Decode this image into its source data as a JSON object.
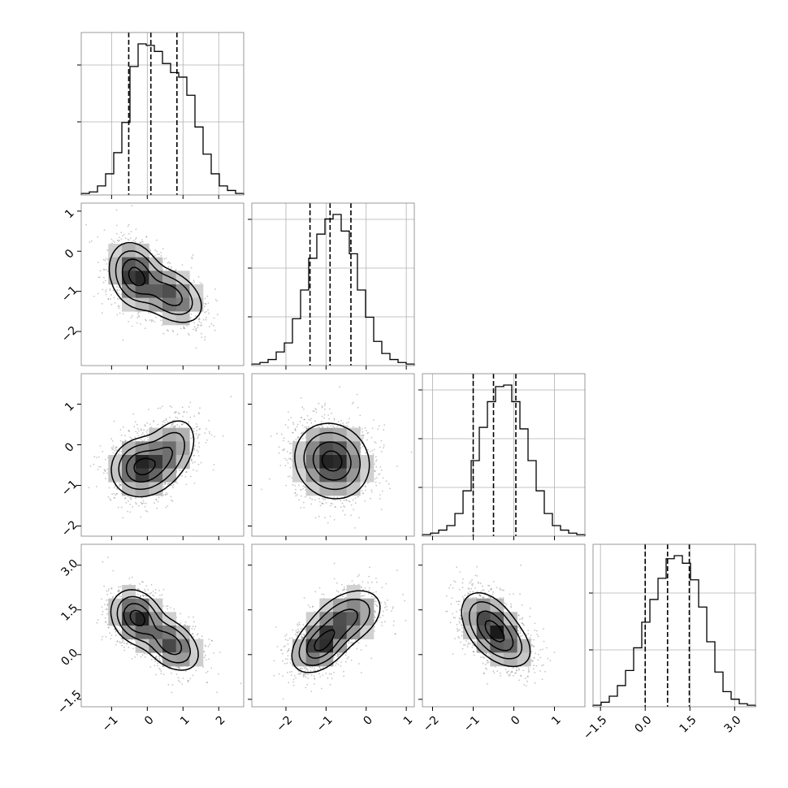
{
  "chart_data": {
    "type": "corner",
    "title": "",
    "grid": true,
    "parameters": [
      {
        "range": [
          -1.85,
          2.7
        ],
        "ticks": [
          -1,
          0,
          1,
          2
        ],
        "tick_labels": [
          "−1",
          "0",
          "1",
          "2"
        ],
        "hist_ticks_y": [
          0.45,
          0.8
        ],
        "quantiles": [
          -0.52,
          0.1,
          0.83
        ]
      },
      {
        "range": [
          -2.85,
          1.2
        ],
        "ticks": [
          -2,
          -1,
          0,
          1
        ],
        "tick_labels": [
          "−2",
          "−1",
          "0",
          "1"
        ],
        "hist_ticks_y": [
          0.3,
          0.6,
          0.9
        ],
        "quantiles": [
          -1.4,
          -0.9,
          -0.38
        ]
      },
      {
        "range": [
          -2.25,
          1.75
        ],
        "ticks": [
          -2,
          -1,
          0,
          1
        ],
        "tick_labels": [
          "−2",
          "−1",
          "0",
          "1"
        ],
        "hist_ticks_y": [
          0.3,
          0.6,
          0.9
        ],
        "quantiles": [
          -1.0,
          -0.5,
          0.05
        ]
      },
      {
        "range": [
          -1.75,
          3.7
        ],
        "ticks": [
          -1.5,
          0.0,
          1.5,
          3.0
        ],
        "tick_labels": [
          "−1.5",
          "0.0",
          "1.5",
          "3.0"
        ],
        "hist_ticks_y": [
          0.35,
          0.7
        ],
        "quantiles": [
          0.0,
          0.75,
          1.48
        ]
      }
    ],
    "histograms": [
      {
        "param": 0,
        "bin_start": -1.85,
        "bin_width": 0.2275,
        "counts": [
          1,
          2,
          6,
          14,
          28,
          48,
          85,
          100,
          99,
          95,
          87,
          81,
          78,
          66,
          45,
          27,
          14,
          6,
          3,
          1
        ]
      },
      {
        "param": 1,
        "bin_start": -2.85,
        "bin_width": 0.2025,
        "counts": [
          1,
          2,
          4,
          9,
          15,
          31,
          50,
          71,
          87,
          97,
          100,
          89,
          74,
          50,
          32,
          16,
          8,
          4,
          2,
          1
        ]
      },
      {
        "param": 2,
        "bin_start": -2.25,
        "bin_width": 0.2,
        "counts": [
          1,
          2,
          4,
          7,
          15,
          30,
          50,
          72,
          89,
          99,
          100,
          89,
          71,
          50,
          30,
          15,
          7,
          4,
          2,
          1
        ]
      },
      {
        "param": 3,
        "bin_start": -1.75,
        "bin_width": 0.2725,
        "counts": [
          1,
          3,
          7,
          14,
          24,
          39,
          56,
          71,
          85,
          98,
          100,
          95,
          84,
          66,
          43,
          23,
          10,
          5,
          2,
          1
        ]
      }
    ],
    "joint_densities": [
      {
        "x_param": 0,
        "y_param": 1,
        "peaks": [
          {
            "x": -0.35,
            "y": -0.6,
            "w": 1.0,
            "sx": 0.35,
            "sy": 0.4,
            "rho": -0.2
          },
          {
            "x": 0.65,
            "y": -1.1,
            "w": 0.8,
            "sx": 0.45,
            "sy": 0.35,
            "rho": -0.4
          }
        ]
      },
      {
        "x_param": 0,
        "y_param": 2,
        "peaks": [
          {
            "x": -0.2,
            "y": -0.55,
            "w": 1.0,
            "sx": 0.4,
            "sy": 0.35,
            "rho": 0.1
          },
          {
            "x": 0.6,
            "y": -0.2,
            "w": 0.6,
            "sx": 0.4,
            "sy": 0.45,
            "rho": 0.4
          }
        ]
      },
      {
        "x_param": 1,
        "y_param": 2,
        "peaks": [
          {
            "x": -0.85,
            "y": -0.4,
            "w": 1.0,
            "sx": 0.45,
            "sy": 0.45,
            "rho": -0.1
          }
        ]
      },
      {
        "x_param": 0,
        "y_param": 3,
        "peaks": [
          {
            "x": -0.3,
            "y": 1.25,
            "w": 1.0,
            "sx": 0.35,
            "sy": 0.45,
            "rho": -0.2
          },
          {
            "x": 0.65,
            "y": 0.35,
            "w": 0.8,
            "sx": 0.4,
            "sy": 0.45,
            "rho": -0.4
          }
        ]
      },
      {
        "x_param": 1,
        "y_param": 3,
        "peaks": [
          {
            "x": -1.15,
            "y": 0.3,
            "w": 1.0,
            "sx": 0.35,
            "sy": 0.45,
            "rho": 0.4
          },
          {
            "x": -0.5,
            "y": 1.2,
            "w": 0.8,
            "sx": 0.45,
            "sy": 0.5,
            "rho": 0.4
          }
        ]
      },
      {
        "x_param": 2,
        "y_param": 3,
        "peaks": [
          {
            "x": -0.6,
            "y": 1.0,
            "w": 1.0,
            "sx": 0.35,
            "sy": 0.55,
            "rho": -0.4
          },
          {
            "x": -0.2,
            "y": 0.4,
            "w": 0.6,
            "sx": 0.35,
            "sy": 0.45,
            "rho": -0.4
          }
        ]
      }
    ],
    "contour_levels": [
      0.12,
      0.3,
      0.58,
      0.86
    ],
    "colors": {
      "histogram": "#000000",
      "contour": "#000000",
      "points": "#808080",
      "grid": "#b0b0b0",
      "frame": "#808080"
    }
  }
}
